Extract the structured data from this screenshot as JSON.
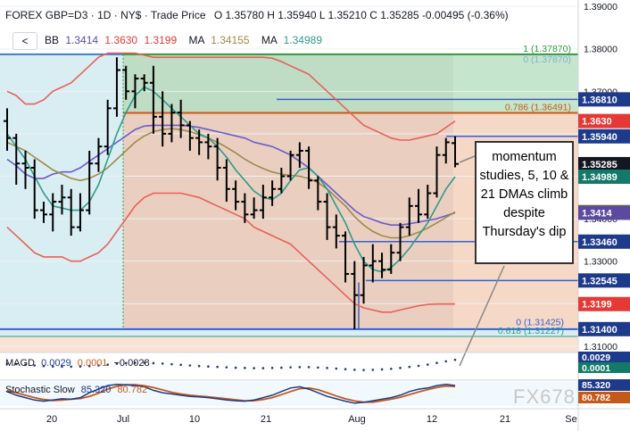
{
  "header": {
    "title_prefix": "FOREX",
    "symbol": "GBP=D3",
    "interval": "1D",
    "exchange": "NY$",
    "chart_style": "Trade Price",
    "ohlc": "O 1.35780  H 1.35940  L 1.35210  C 1.35285  -0.00495 (-0.36%)",
    "collapse_label": "<",
    "bb_label": "BB",
    "bb_values": [
      "1.3414",
      "1.3630",
      "1.3199"
    ],
    "ma1_label": "MA",
    "ma1_value": "1.34155",
    "ma2_label": "MA",
    "ma2_value": "1.34989"
  },
  "callout_text": "momentum studies, 5, 10 & 21 DMAs climb despite Thursday's dip",
  "watermark": "FX678",
  "macd_legend": {
    "label": "MAGD",
    "values": [
      "0.0029",
      "0.0001",
      "−0.0028"
    ]
  },
  "stoch_legend": {
    "label": "Stochastic Slow",
    "values": [
      "85.320",
      "80.782"
    ]
  },
  "colors": {
    "bb_band": "#e8605a",
    "bb_mid": "#6a5acd",
    "ma_fast": "#2e9b8a",
    "ma_slow": "#9e8a4a",
    "candle": "#000000",
    "fib_label": "#7fb3d5",
    "level_line": "#3a5fcd"
  },
  "chart_data": {
    "type": "bar",
    "symbol": "GBP/USD",
    "ylim": [
      1.3085,
      1.3915
    ],
    "y_ticks": [
      "1.39000",
      "1.38000",
      "1.37000",
      "1.36000",
      "1.35000",
      "1.34000",
      "1.33000",
      "1.32000",
      "1.31000"
    ],
    "x_ticks": [
      "20",
      "Jul",
      "10",
      "21",
      "Aug",
      "12",
      "21",
      "Se"
    ],
    "ohlc": [
      [
        1.363,
        1.366,
        1.356,
        1.359
      ],
      [
        1.359,
        1.36,
        1.348,
        1.353
      ],
      [
        1.353,
        1.356,
        1.347,
        1.352
      ],
      [
        1.352,
        1.354,
        1.34,
        1.342
      ],
      [
        1.342,
        1.344,
        1.339,
        1.341
      ],
      [
        1.341,
        1.346,
        1.337,
        1.344
      ],
      [
        1.344,
        1.348,
        1.341,
        1.345
      ],
      [
        1.345,
        1.347,
        1.336,
        1.338
      ],
      [
        1.338,
        1.346,
        1.337,
        1.342
      ],
      [
        1.342,
        1.356,
        1.341,
        1.353
      ],
      [
        1.353,
        1.359,
        1.351,
        1.357
      ],
      [
        1.357,
        1.368,
        1.355,
        1.366
      ],
      [
        1.366,
        1.378,
        1.364,
        1.375
      ],
      [
        1.375,
        1.376,
        1.368,
        1.37
      ],
      [
        1.37,
        1.374,
        1.366,
        1.373
      ],
      [
        1.373,
        1.374,
        1.37,
        1.372
      ],
      [
        1.372,
        1.376,
        1.36,
        1.364
      ],
      [
        1.364,
        1.37,
        1.357,
        1.36
      ],
      [
        1.36,
        1.367,
        1.358,
        1.365
      ],
      [
        1.365,
        1.368,
        1.359,
        1.362
      ],
      [
        1.362,
        1.363,
        1.356,
        1.359
      ],
      [
        1.359,
        1.361,
        1.355,
        1.358
      ],
      [
        1.358,
        1.36,
        1.354,
        1.357
      ],
      [
        1.357,
        1.359,
        1.349,
        1.352
      ],
      [
        1.352,
        1.354,
        1.344,
        1.347
      ],
      [
        1.347,
        1.349,
        1.342,
        1.344
      ],
      [
        1.344,
        1.346,
        1.339,
        1.341
      ],
      [
        1.341,
        1.345,
        1.34,
        1.342
      ],
      [
        1.342,
        1.348,
        1.34,
        1.345
      ],
      [
        1.345,
        1.349,
        1.343,
        1.347
      ],
      [
        1.347,
        1.352,
        1.346,
        1.35
      ],
      [
        1.35,
        1.356,
        1.349,
        1.355
      ],
      [
        1.355,
        1.358,
        1.352,
        1.356
      ],
      [
        1.356,
        1.357,
        1.347,
        1.349
      ],
      [
        1.349,
        1.35,
        1.342,
        1.344
      ],
      [
        1.344,
        1.346,
        1.335,
        1.338
      ],
      [
        1.338,
        1.341,
        1.333,
        1.336
      ],
      [
        1.336,
        1.337,
        1.325,
        1.327
      ],
      [
        1.327,
        1.33,
        1.314,
        1.322
      ],
      [
        1.322,
        1.331,
        1.32,
        1.329
      ],
      [
        1.329,
        1.334,
        1.325,
        1.33
      ],
      [
        1.33,
        1.332,
        1.326,
        1.328
      ],
      [
        1.328,
        1.334,
        1.327,
        1.332
      ],
      [
        1.332,
        1.339,
        1.33,
        1.338
      ],
      [
        1.338,
        1.345,
        1.336,
        1.343
      ],
      [
        1.343,
        1.347,
        1.339,
        1.341
      ],
      [
        1.341,
        1.348,
        1.34,
        1.346
      ],
      [
        1.346,
        1.357,
        1.345,
        1.355
      ],
      [
        1.355,
        1.359,
        1.353,
        1.358
      ],
      [
        1.3578,
        1.3594,
        1.3521,
        1.3529
      ]
    ],
    "bb_upper": [
      1.37,
      1.369,
      1.367,
      1.367,
      1.368,
      1.37,
      1.371,
      1.372,
      1.374,
      1.376,
      1.378,
      1.379,
      1.379,
      1.379,
      1.379,
      1.3785,
      1.378,
      1.378,
      1.378,
      1.378,
      1.378,
      1.378,
      1.378,
      1.378,
      1.378,
      1.378,
      1.378,
      1.378,
      1.378,
      1.3778,
      1.377,
      1.376,
      1.375,
      1.374,
      1.372,
      1.37,
      1.368,
      1.366,
      1.364,
      1.362,
      1.361,
      1.36,
      1.359,
      1.3585,
      1.3585,
      1.359,
      1.3595,
      1.36,
      1.3615,
      1.363
    ],
    "bb_lower": [
      1.338,
      1.336,
      1.334,
      1.332,
      1.331,
      1.331,
      1.331,
      1.33,
      1.33,
      1.331,
      1.332,
      1.334,
      1.337,
      1.34,
      1.343,
      1.345,
      1.346,
      1.346,
      1.346,
      1.346,
      1.3455,
      1.345,
      1.344,
      1.343,
      1.342,
      1.341,
      1.34,
      1.338,
      1.337,
      1.336,
      1.335,
      1.334,
      1.332,
      1.33,
      1.328,
      1.326,
      1.324,
      1.322,
      1.32,
      1.319,
      1.3185,
      1.318,
      1.318,
      1.3185,
      1.319,
      1.3195,
      1.3198,
      1.3199,
      1.3199,
      1.3199
    ],
    "bb_mid": [
      1.354,
      1.3525,
      1.3505,
      1.3495,
      1.3495,
      1.3505,
      1.351,
      1.351,
      1.352,
      1.3535,
      1.355,
      1.3565,
      1.358,
      1.3595,
      1.361,
      1.3618,
      1.362,
      1.362,
      1.362,
      1.362,
      1.3618,
      1.3615,
      1.361,
      1.3605,
      1.36,
      1.3595,
      1.359,
      1.358,
      1.3575,
      1.357,
      1.356,
      1.355,
      1.3535,
      1.352,
      1.35,
      1.348,
      1.346,
      1.344,
      1.342,
      1.3405,
      1.3398,
      1.339,
      1.3385,
      1.3385,
      1.3388,
      1.3392,
      1.3396,
      1.34,
      1.3407,
      1.3414
    ],
    "ma_fast": [
      1.36,
      1.357,
      1.354,
      1.35,
      1.346,
      1.343,
      1.3425,
      1.342,
      1.342,
      1.344,
      1.348,
      1.354,
      1.36,
      1.365,
      1.369,
      1.371,
      1.37,
      1.368,
      1.366,
      1.364,
      1.362,
      1.36,
      1.359,
      1.357,
      1.3545,
      1.3515,
      1.349,
      1.3465,
      1.345,
      1.3445,
      1.346,
      1.349,
      1.3515,
      1.352,
      1.35,
      1.347,
      1.343,
      1.339,
      1.334,
      1.33,
      1.328,
      1.3275,
      1.3285,
      1.3305,
      1.333,
      1.336,
      1.339,
      1.343,
      1.347,
      1.3499
    ],
    "ma_slow": [
      1.358,
      1.357,
      1.356,
      1.3545,
      1.353,
      1.3515,
      1.3505,
      1.3495,
      1.349,
      1.3495,
      1.3505,
      1.352,
      1.354,
      1.356,
      1.358,
      1.3595,
      1.3605,
      1.361,
      1.3612,
      1.361,
      1.3605,
      1.3598,
      1.359,
      1.358,
      1.3568,
      1.3555,
      1.354,
      1.3528,
      1.3518,
      1.351,
      1.3505,
      1.3502,
      1.35,
      1.3495,
      1.3485,
      1.347,
      1.345,
      1.343,
      1.3405,
      1.3385,
      1.337,
      1.336,
      1.3355,
      1.3355,
      1.336,
      1.3368,
      1.3378,
      1.339,
      1.3403,
      1.3416
    ],
    "fib_levels": [
      {
        "label": "1 (1.37870)",
        "value": 1.3787,
        "color": "#2e9b3a"
      },
      {
        "label": "0 (1.37870)",
        "value": 1.3787,
        "color": "#7fb3d5"
      },
      {
        "label": "0.786 (1.36491)",
        "value": 1.36491,
        "color": "#c45a1a"
      },
      {
        "label": "0 (1.31425)",
        "value": 1.31425,
        "color": "#3a5fcd"
      },
      {
        "label": "0.618 (1.31227)",
        "value": 1.31227,
        "color": "#2e9b8a"
      }
    ],
    "hlines": [
      1.3787,
      1.3681,
      1.3594,
      1.3346,
      1.32545,
      1.314
    ],
    "price_labels": [
      {
        "text": "1.36810",
        "value": 1.3681,
        "color": "#1e3a8a"
      },
      {
        "text": "1.3630",
        "value": 1.363,
        "color": "#e53935"
      },
      {
        "text": "1.35940",
        "value": 1.3594,
        "color": "#1e3a8a"
      },
      {
        "text": "1.35285",
        "value": 1.35285,
        "color": "#131722"
      },
      {
        "text": "1.34989",
        "value": 1.34989,
        "color": "#137a6a"
      },
      {
        "text": "1.34155",
        "value": 1.34155,
        "color": "#7a6a20"
      },
      {
        "text": "1.3414",
        "value": 1.3414,
        "color": "#5b4aa0"
      },
      {
        "text": "1.33460",
        "value": 1.3346,
        "color": "#1e3a8a"
      },
      {
        "text": "1.32545",
        "value": 1.32545,
        "color": "#1e3a8a"
      },
      {
        "text": "1.3199",
        "value": 1.3199,
        "color": "#e53935"
      },
      {
        "text": "1.31400",
        "value": 1.314,
        "color": "#1e3a8a"
      }
    ],
    "macd": {
      "ylim": [
        -0.006,
        0.006
      ],
      "price_labels": [
        "0.0029",
        "0.0001"
      ],
      "hist": [
        0.001,
        0.0008,
        0.0005,
        0.0002,
        -0.0001,
        -0.0003,
        -0.0004,
        -0.0004,
        -0.0003,
        -0.0001,
        0.0002,
        0.0006,
        0.001,
        0.0013,
        0.0015,
        0.0015,
        0.0013,
        0.0011,
        0.0008,
        0.0005,
        0.0002,
        -0.0001,
        -0.0003,
        -0.0005,
        -0.0007,
        -0.0009,
        -0.001,
        -0.0011,
        -0.0011,
        -0.001,
        -0.0009,
        -0.0007,
        -0.0006,
        -0.0006,
        -0.0008,
        -0.001,
        -0.0013,
        -0.0016,
        -0.0019,
        -0.002,
        -0.0019,
        -0.0017,
        -0.0014,
        -0.001,
        -0.0005,
        0.0,
        0.0006,
        0.0014,
        0.0022,
        0.0029
      ]
    },
    "stochastic": {
      "ylim": [
        0,
        100
      ],
      "price_labels": [
        "85.320",
        "80.782"
      ],
      "k": [
        60,
        45,
        35,
        25,
        20,
        25,
        30,
        28,
        35,
        55,
        70,
        85,
        90,
        88,
        85,
        80,
        65,
        55,
        50,
        45,
        40,
        38,
        35,
        30,
        25,
        22,
        20,
        25,
        35,
        45,
        60,
        75,
        80,
        70,
        55,
        40,
        30,
        20,
        12,
        15,
        22,
        28,
        35,
        45,
        60,
        70,
        75,
        85,
        90,
        85.32
      ],
      "d": [
        65,
        55,
        45,
        35,
        27,
        23,
        25,
        28,
        31,
        40,
        53,
        70,
        82,
        88,
        88,
        84,
        77,
        67,
        57,
        50,
        45,
        41,
        38,
        34,
        30,
        26,
        22,
        22,
        27,
        35,
        47,
        60,
        72,
        75,
        68,
        55,
        42,
        30,
        21,
        16,
        16,
        22,
        28,
        36,
        47,
        58,
        68,
        77,
        83,
        80.782
      ]
    }
  }
}
